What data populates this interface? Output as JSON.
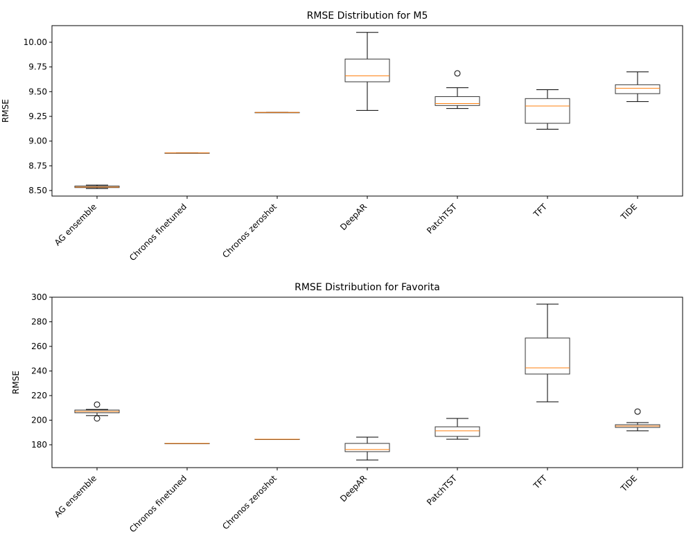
{
  "chart_data": [
    {
      "type": "box",
      "title": "RMSE Distribution for M5",
      "y_label": "RMSE",
      "categories": [
        "AG ensemble",
        "Chronos finetuned",
        "Chronos zeroshot",
        "DeepAR",
        "PatchTST",
        "TFT",
        "TiDE"
      ],
      "boxes": [
        {
          "whislo": 8.52,
          "q1": 8.53,
          "med": 8.535,
          "q3": 8.545,
          "whishi": 8.555,
          "fliers": []
        },
        {
          "whislo": 8.88,
          "q1": 8.88,
          "med": 8.88,
          "q3": 8.88,
          "whishi": 8.88,
          "fliers": []
        },
        {
          "whislo": 9.29,
          "q1": 9.29,
          "med": 9.29,
          "q3": 9.29,
          "whishi": 9.29,
          "fliers": []
        },
        {
          "whislo": 9.31,
          "q1": 9.6,
          "med": 9.66,
          "q3": 9.83,
          "whishi": 10.1,
          "fliers": []
        },
        {
          "whislo": 9.33,
          "q1": 9.36,
          "med": 9.38,
          "q3": 9.45,
          "whishi": 9.54,
          "fliers": [
            9.685
          ]
        },
        {
          "whislo": 9.12,
          "q1": 9.18,
          "med": 9.355,
          "q3": 9.43,
          "whishi": 9.52,
          "fliers": []
        },
        {
          "whislo": 9.4,
          "q1": 9.48,
          "med": 9.535,
          "q3": 9.57,
          "whishi": 9.7,
          "fliers": []
        }
      ],
      "box_color": "#333333",
      "median_color": "#ff7f0e",
      "ylim": [
        8.444,
        10.168
      ],
      "yticks": [
        {
          "value": 8.5,
          "label": "8.50"
        },
        {
          "value": 8.75,
          "label": "8.75"
        },
        {
          "value": 9,
          "label": "9.00"
        },
        {
          "value": 9.25,
          "label": "9.25"
        },
        {
          "value": 9.5,
          "label": "9.50"
        },
        {
          "value": 9.75,
          "label": "9.75"
        },
        {
          "value": 10,
          "label": "10.00"
        }
      ]
    },
    {
      "type": "box",
      "title": "RMSE Distribution for Favorita",
      "y_label": "RMSE",
      "categories": [
        "AG ensemble",
        "Chronos finetuned",
        "Chronos zeroshot",
        "DeepAR",
        "PatchTST",
        "TFT",
        "TiDE"
      ],
      "boxes": [
        {
          "whislo": 203.7,
          "q1": 206,
          "med": 207.1,
          "q3": 208.2,
          "whishi": 208.7,
          "fliers": [
            212.7,
            201.4
          ]
        },
        {
          "whislo": 181.1,
          "q1": 181.1,
          "med": 181.1,
          "q3": 181.1,
          "whishi": 181.1,
          "fliers": []
        },
        {
          "whislo": 184.5,
          "q1": 184.5,
          "med": 184.5,
          "q3": 184.5,
          "whishi": 184.5,
          "fliers": []
        },
        {
          "whislo": 167.6,
          "q1": 174.4,
          "med": 176.1,
          "q3": 181.1,
          "whishi": 186.2,
          "fliers": []
        },
        {
          "whislo": 184.5,
          "q1": 186.8,
          "med": 191.3,
          "q3": 194.6,
          "whishi": 201.4,
          "fliers": []
        },
        {
          "whislo": 214.9,
          "q1": 237.5,
          "med": 242.5,
          "q3": 266.8,
          "whishi": 294.4,
          "fliers": []
        },
        {
          "whislo": 191.3,
          "q1": 194.1,
          "med": 195.2,
          "q3": 196.3,
          "whishi": 198,
          "fliers": [
            207
          ]
        }
      ],
      "box_color": "#333333",
      "median_color": "#ff7f0e",
      "ylim": [
        161.4,
        300
      ],
      "yticks": [
        180,
        200,
        220,
        240,
        260,
        280,
        300
      ]
    }
  ]
}
